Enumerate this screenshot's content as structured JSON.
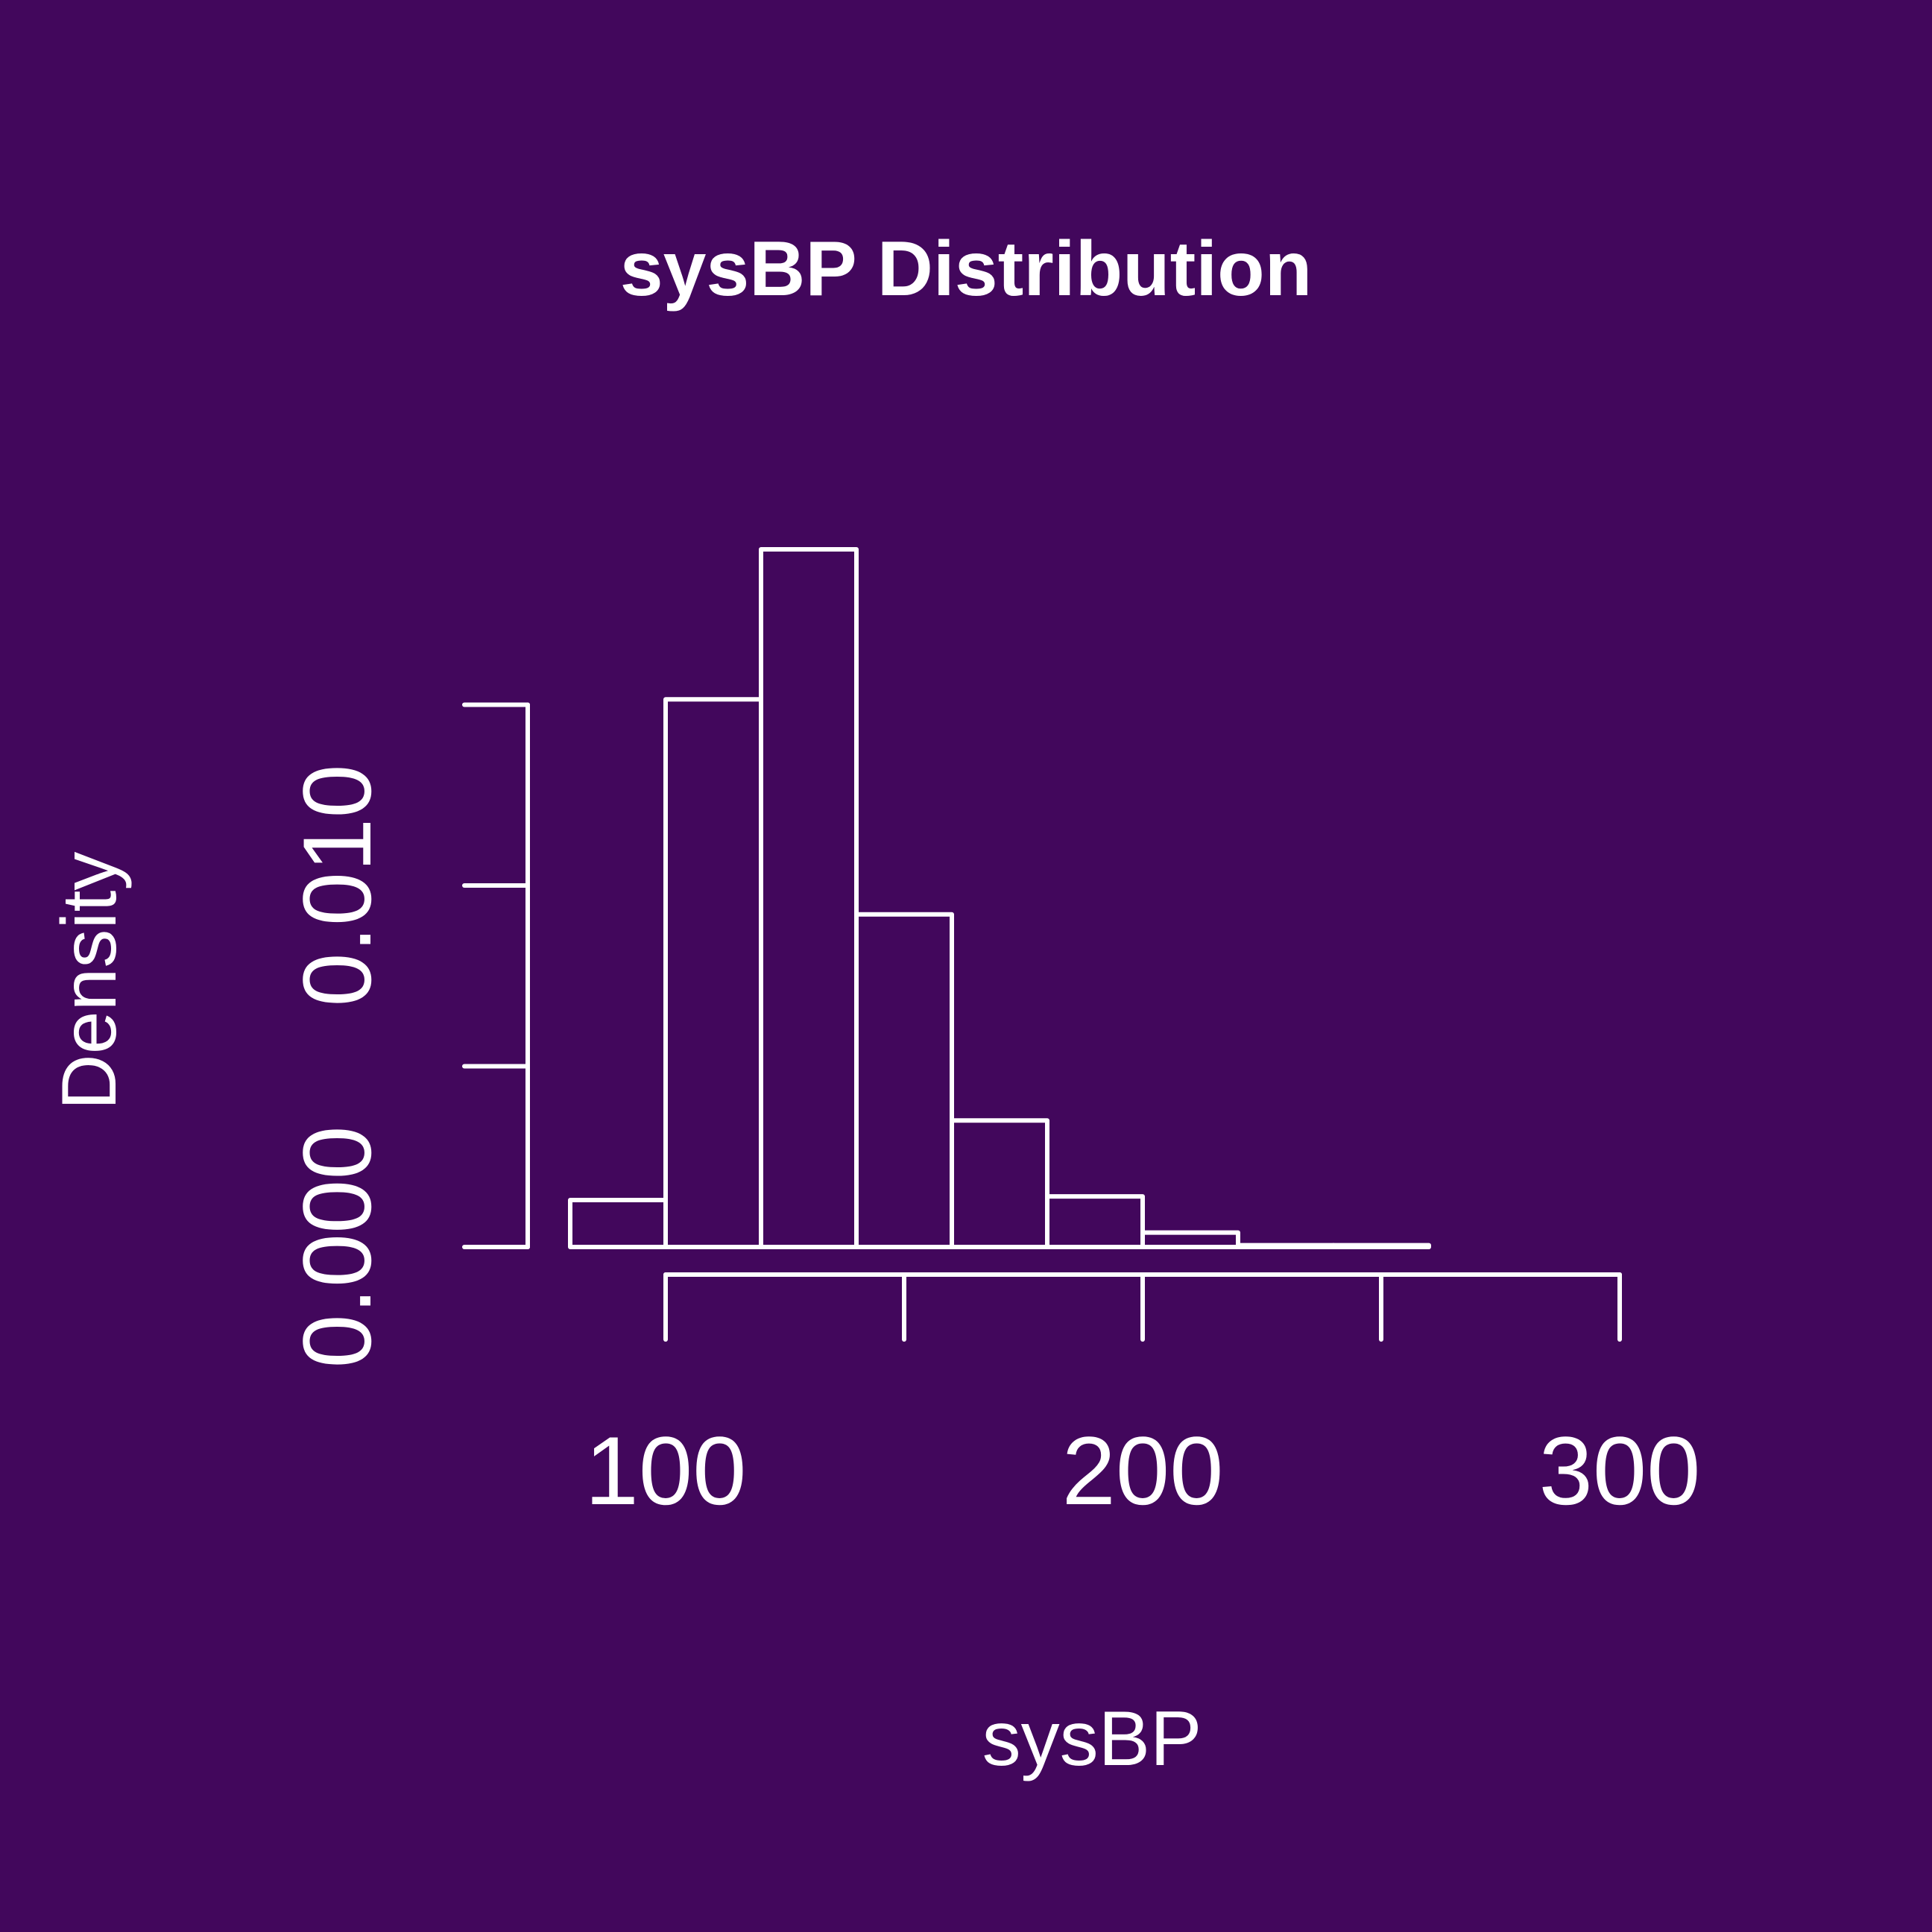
{
  "colors": {
    "background": "#42075c",
    "foreground": "#ffffff"
  },
  "chart_data": {
    "type": "bar",
    "title": "sysBP Distribution",
    "xlabel": "sysBP",
    "ylabel": "Density",
    "xlim": [
      80,
      300
    ],
    "ylim": [
      0,
      0.015
    ],
    "x_ticks": [
      100,
      150,
      200,
      250,
      300
    ],
    "x_tick_labels": [
      "100",
      "",
      "200",
      "",
      "300"
    ],
    "y_ticks": [
      0,
      0.005,
      0.01,
      0.015
    ],
    "y_tick_labels": [
      "0.000",
      "",
      "0.010",
      ""
    ],
    "bins": [
      {
        "x0": 80,
        "x1": 100,
        "density": 0.0013
      },
      {
        "x0": 100,
        "x1": 120,
        "density": 0.01515
      },
      {
        "x0": 120,
        "x1": 140,
        "density": 0.0193
      },
      {
        "x0": 140,
        "x1": 160,
        "density": 0.0092
      },
      {
        "x0": 160,
        "x1": 180,
        "density": 0.0035
      },
      {
        "x0": 180,
        "x1": 200,
        "density": 0.0014
      },
      {
        "x0": 200,
        "x1": 220,
        "density": 0.0004
      },
      {
        "x0": 220,
        "x1": 240,
        "density": 5e-05
      },
      {
        "x0": 240,
        "x1": 260,
        "density": 5e-05
      },
      {
        "x0": 260,
        "x1": 280,
        "density": 0.0
      },
      {
        "x0": 280,
        "x1": 300,
        "density": 0.0
      }
    ],
    "grid": false,
    "legend": "none"
  }
}
